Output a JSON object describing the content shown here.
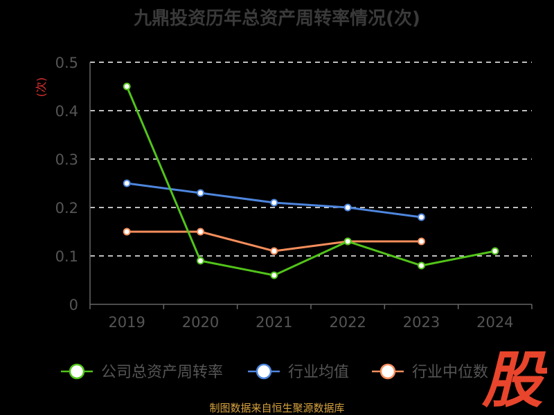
{
  "title": "九鼎投资历年总资产周转率情况(次)",
  "source": "制图数据来自恒生聚源数据库",
  "watermark_text": "股",
  "colors": {
    "background": "#000000",
    "grid": "#ffffff",
    "axis": "#666666",
    "tick_text": "#555555",
    "unit": "#e03030",
    "legend_text": "#555555",
    "source": "#d9a441",
    "watermark": "#e8452c"
  },
  "chart_data": {
    "type": "line",
    "ylabel": "(次)",
    "ylim": [
      0,
      0.5
    ],
    "yticks": [
      "0",
      "0.1",
      "0.2",
      "0.3",
      "0.4",
      "0.5"
    ],
    "categories": [
      "2019",
      "2020",
      "2021",
      "2022",
      "2023",
      "2024"
    ],
    "grid": true,
    "legend_position": "bottom",
    "series": [
      {
        "name": "公司总资产周转率",
        "color": "#52c41a",
        "values": [
          0.45,
          0.09,
          0.06,
          0.13,
          0.08,
          0.11
        ]
      },
      {
        "name": "行业均值",
        "color": "#4e86de",
        "values": [
          0.25,
          0.23,
          0.21,
          0.2,
          0.18,
          null
        ]
      },
      {
        "name": "行业中位数",
        "color": "#f58e5c",
        "values": [
          0.15,
          0.15,
          0.11,
          0.13,
          0.13,
          null
        ]
      }
    ]
  }
}
